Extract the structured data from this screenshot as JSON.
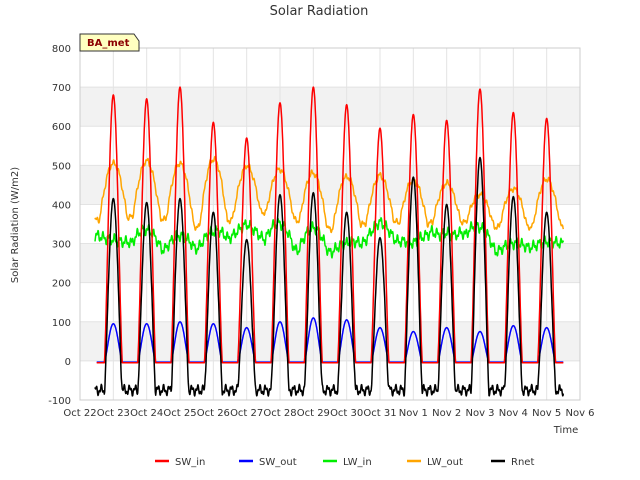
{
  "chart_data": {
    "type": "line",
    "title": "Solar Radiation",
    "xlabel": "Time",
    "ylabel": "Solar Radiation (W/m2)",
    "badge": "BA_met",
    "ylim": [
      -100,
      800
    ],
    "xlim": [
      0,
      15
    ],
    "yticks": [
      -100,
      0,
      100,
      200,
      300,
      400,
      500,
      600,
      700,
      800
    ],
    "xticks": [
      {
        "value": 0,
        "label": "Oct 22"
      },
      {
        "value": 1,
        "label": "Oct 23"
      },
      {
        "value": 2,
        "label": "Oct 24"
      },
      {
        "value": 3,
        "label": "Oct 25"
      },
      {
        "value": 4,
        "label": "Oct 26"
      },
      {
        "value": 5,
        "label": "Oct 27"
      },
      {
        "value": 6,
        "label": "Oct 28"
      },
      {
        "value": 7,
        "label": "Oct 29"
      },
      {
        "value": 8,
        "label": "Oct 30"
      },
      {
        "value": 9,
        "label": "Oct 31"
      },
      {
        "value": 10,
        "label": "Nov 1"
      },
      {
        "value": 11,
        "label": "Nov 2"
      },
      {
        "value": 12,
        "label": "Nov 3"
      },
      {
        "value": 13,
        "label": "Nov 4"
      },
      {
        "value": 14,
        "label": "Nov 5"
      },
      {
        "value": 15,
        "label": "Nov 6"
      }
    ],
    "grid": true,
    "bands": "alternating light-gray horizontal bands",
    "legend_position": "bottom-center",
    "days": [
      {
        "noon": 1.0,
        "sw_in": 680,
        "sw_out": 95,
        "lw_in": 310,
        "lw_out": 505,
        "rnet": 415,
        "lw_in_night": 320,
        "lw_out_night": 360
      },
      {
        "noon": 2.0,
        "sw_in": 670,
        "sw_out": 95,
        "lw_in": 335,
        "lw_out": 512,
        "rnet": 405,
        "lw_in_night": 285,
        "lw_out_night": 375
      },
      {
        "noon": 3.0,
        "sw_in": 700,
        "sw_out": 100,
        "lw_in": 320,
        "lw_out": 505,
        "rnet": 415,
        "lw_in_night": 285,
        "lw_out_night": 350
      },
      {
        "noon": 4.0,
        "sw_in": 610,
        "sw_out": 95,
        "lw_in": 330,
        "lw_out": 515,
        "rnet": 380,
        "lw_in_night": 290,
        "lw_out_night": 335
      },
      {
        "noon": 5.0,
        "sw_in": 570,
        "sw_out": 85,
        "lw_in": 350,
        "lw_out": 500,
        "rnet": 310,
        "lw_in_night": 340,
        "lw_out_night": 385
      },
      {
        "noon": 6.0,
        "sw_in": 660,
        "sw_out": 100,
        "lw_in": 350,
        "lw_out": 490,
        "rnet": 425,
        "lw_in_night": 285,
        "lw_out_night": 375
      },
      {
        "noon": 7.0,
        "sw_in": 700,
        "sw_out": 110,
        "lw_in": 340,
        "lw_out": 480,
        "rnet": 430,
        "lw_in_night": 280,
        "lw_out_night": 345
      },
      {
        "noon": 8.0,
        "sw_in": 655,
        "sw_out": 105,
        "lw_in": 300,
        "lw_out": 470,
        "rnet": 380,
        "lw_in_night": 275,
        "lw_out_night": 330
      },
      {
        "noon": 9.0,
        "sw_in": 595,
        "sw_out": 85,
        "lw_in": 355,
        "lw_out": 475,
        "rnet": 315,
        "lw_in_night": 330,
        "lw_out_night": 370
      },
      {
        "noon": 10.0,
        "sw_in": 630,
        "sw_out": 75,
        "lw_in": 300,
        "lw_out": 460,
        "rnet": 470,
        "lw_in_night": 285,
        "lw_out_night": 340
      },
      {
        "noon": 11.0,
        "sw_in": 615,
        "sw_out": 85,
        "lw_in": 330,
        "lw_out": 455,
        "rnet": 400,
        "lw_in_night": 370,
        "lw_out_night": 365
      },
      {
        "noon": 12.0,
        "sw_in": 695,
        "sw_out": 75,
        "lw_in": 340,
        "lw_out": 425,
        "rnet": 520,
        "lw_in_night": 280,
        "lw_out_night": 345
      },
      {
        "noon": 13.0,
        "sw_in": 635,
        "sw_out": 90,
        "lw_in": 300,
        "lw_out": 440,
        "rnet": 420,
        "lw_in_night": 280,
        "lw_out_night": 340
      },
      {
        "noon": 14.0,
        "sw_in": 620,
        "sw_out": 85,
        "lw_in": 305,
        "lw_out": 465,
        "rnet": 380,
        "lw_in_night": 300,
        "lw_out_night": 345
      }
    ],
    "series": [
      {
        "name": "SW_in",
        "color": "#ff0000",
        "night": -5,
        "start": 0.5,
        "end": 14.5
      },
      {
        "name": "SW_out",
        "color": "#0000ff",
        "night": -3,
        "start": 0.5,
        "end": 14.5
      },
      {
        "name": "LW_in",
        "color": "#00ee00",
        "start": 0.45,
        "end": 14.5
      },
      {
        "name": "LW_out",
        "color": "#ffa500",
        "start": 0.45,
        "end": 14.5
      },
      {
        "name": "Rnet",
        "color": "#000000",
        "night": -75,
        "start": 0.45,
        "end": 14.5
      }
    ]
  }
}
